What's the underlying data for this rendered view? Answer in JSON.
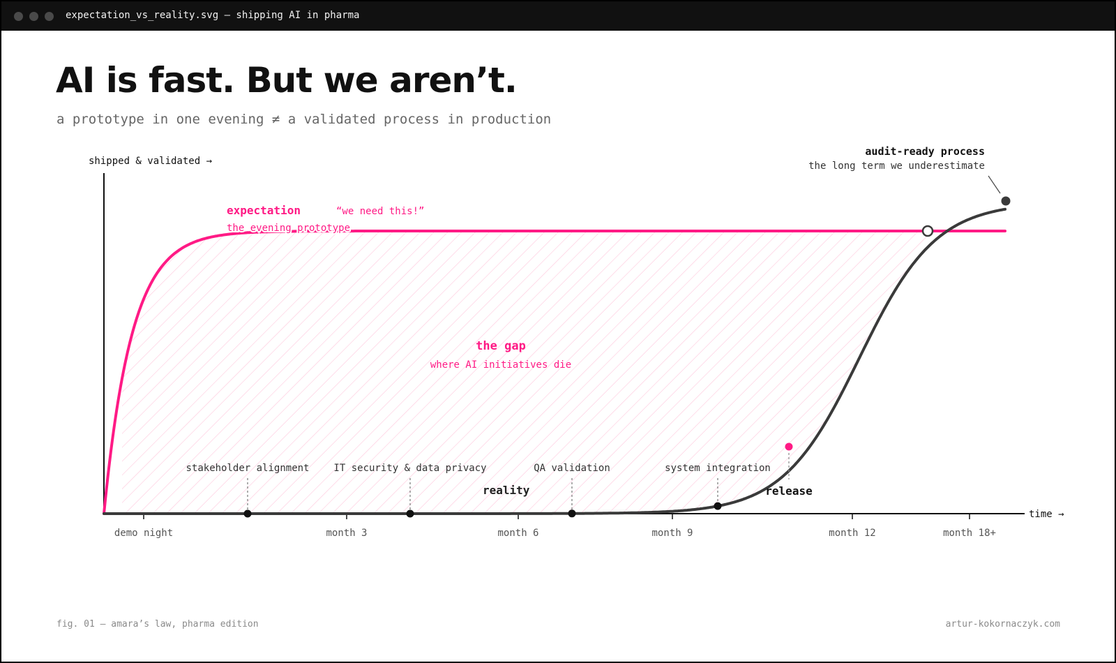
{
  "window": {
    "title": "expectation_vs_reality.svg — shipping AI in pharma",
    "controls": [
      "close",
      "minimize",
      "maximize"
    ]
  },
  "header": {
    "title": "AI is fast. But we aren’t.",
    "subtitle": "a prototype in one evening ≠ a validated process in production"
  },
  "chart_data": {
    "type": "line",
    "ylabel": "shipped & validated →",
    "xlabel": "time →",
    "x_ticks": [
      "demo night",
      "month 3",
      "month 6",
      "month 9",
      "month 12",
      "month 18+"
    ],
    "grid": false,
    "colors": {
      "expectation": "#ff1a85",
      "reality": "#3a3a3a",
      "gap_hatch": "#ffc7dc",
      "milestone": "#111111"
    },
    "series": [
      {
        "name": "expectation",
        "description": "the evening prototype",
        "quote": "“we need this!”"
      },
      {
        "name": "reality"
      }
    ],
    "annotations": {
      "gap_title": "the gap",
      "gap_subtitle": "where AI initiatives die",
      "endpoint_title": "audit-ready process",
      "endpoint_subtitle": "the long term we underestimate",
      "release": "release"
    },
    "milestones": [
      "stakeholder alignment",
      "IT security & data privacy",
      "QA validation",
      "system integration"
    ]
  },
  "footer": {
    "caption": "fig. 01 — amara’s law, pharma edition",
    "credit": "artur-kokornaczyk.com"
  }
}
